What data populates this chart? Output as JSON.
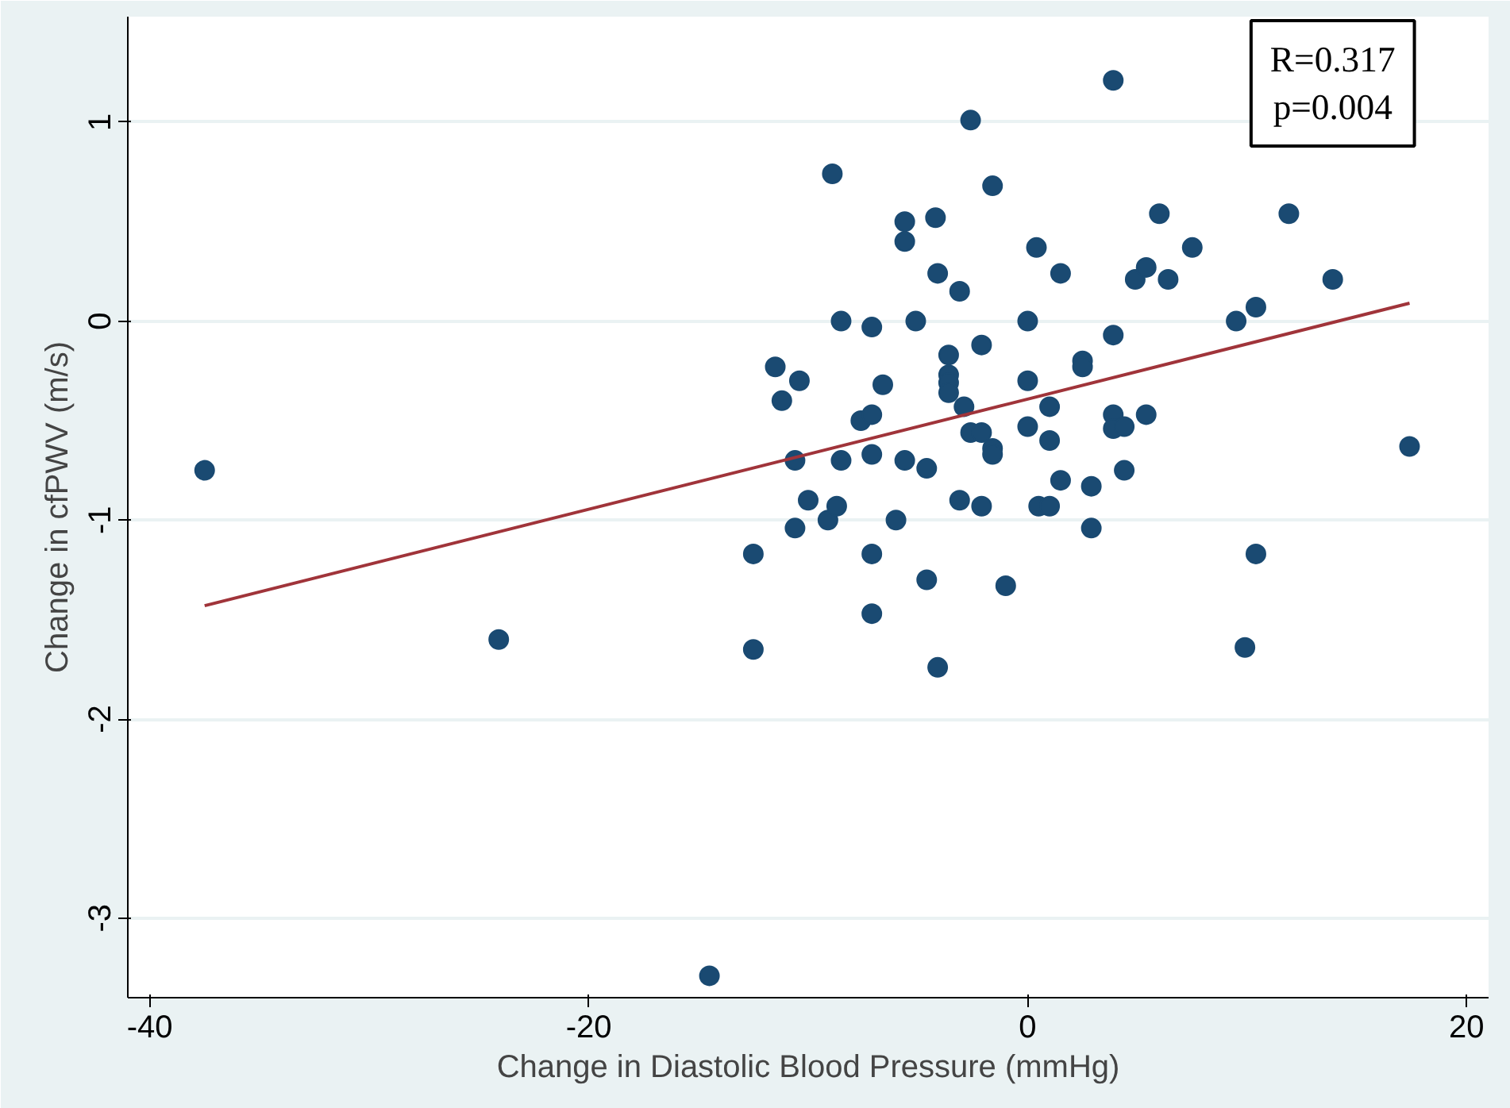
{
  "chart_data": {
    "type": "scatter",
    "xlabel": "Change in Diastolic Blood Pressure (mmHg)",
    "ylabel": "Change in cfPWV (m/s)",
    "annotations": [
      "R=0.317",
      "p=0.004"
    ],
    "xlim": [
      -41,
      21
    ],
    "xticks": [
      -40,
      -20,
      0,
      20
    ],
    "ylim": [
      -3.4,
      1.53
    ],
    "yticks": [
      -3,
      -2,
      -1,
      0,
      1
    ],
    "grid": "y",
    "series": [
      {
        "marker": "circle",
        "color": "#1a4a72",
        "x": [
          -37.5,
          -24.1,
          -14.5,
          -12.5,
          -12.5,
          -11.5,
          -11.2,
          -10.4,
          -10.6,
          -10.6,
          -10.0,
          -8.9,
          -9.1,
          -8.7,
          -8.5,
          -8.5,
          -7.6,
          -7.1,
          -7.1,
          -7.1,
          -7.1,
          -7.1,
          -6.6,
          -6.0,
          -5.6,
          -5.6,
          -5.6,
          -5.1,
          -4.6,
          -4.6,
          -4.2,
          -4.1,
          -4.1,
          -3.6,
          -3.6,
          -3.6,
          -3.6,
          -3.1,
          -2.9,
          -3.1,
          -2.6,
          -2.6,
          -2.1,
          -2.1,
          -2.1,
          -1.6,
          -1.6,
          -1.6,
          -1.0,
          0.0,
          0.0,
          0.0,
          0.4,
          0.5,
          1.0,
          1.0,
          1.0,
          1.5,
          1.5,
          2.5,
          2.5,
          2.9,
          2.9,
          3.9,
          3.9,
          3.9,
          3.9,
          4.4,
          4.4,
          4.9,
          5.4,
          5.4,
          6.0,
          6.4,
          7.5,
          9.5,
          9.9,
          10.4,
          10.4,
          11.9,
          13.9,
          17.4
        ],
        "values": [
          -0.75,
          -1.6,
          -3.29,
          -1.17,
          -1.65,
          -0.23,
          -0.4,
          -0.3,
          -0.7,
          -1.04,
          -0.9,
          0.74,
          -1.0,
          -0.93,
          -0.7,
          0.0,
          -0.5,
          -0.03,
          -0.47,
          -0.67,
          -1.17,
          -1.47,
          -0.32,
          -1.0,
          0.5,
          0.4,
          -0.7,
          0.0,
          -0.74,
          -1.3,
          0.52,
          0.24,
          -1.74,
          -0.17,
          -0.27,
          -0.31,
          -0.36,
          0.15,
          -0.43,
          -0.9,
          1.01,
          -0.56,
          -0.12,
          -0.56,
          -0.93,
          0.68,
          -0.64,
          -0.67,
          -1.33,
          0.0,
          -0.3,
          -0.53,
          0.37,
          -0.93,
          -0.43,
          -0.93,
          -0.6,
          0.24,
          -0.8,
          -0.2,
          -0.23,
          -0.83,
          -1.04,
          1.21,
          -0.07,
          -0.47,
          -0.54,
          -0.53,
          -0.75,
          0.21,
          0.27,
          -0.47,
          0.54,
          0.21,
          0.37,
          0.0,
          -1.64,
          0.07,
          -1.17,
          0.54,
          0.21,
          -0.63
        ]
      },
      {
        "type": "line",
        "marker": "none",
        "color": "#a0343a",
        "x": [
          -37.5,
          17.4
        ],
        "values": [
          -1.43,
          0.09
        ]
      }
    ]
  }
}
